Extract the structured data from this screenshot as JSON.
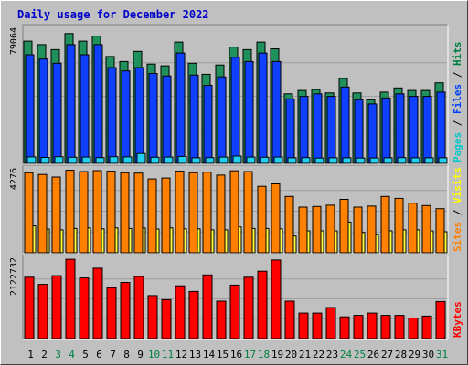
{
  "chart_data": {
    "type": "bar",
    "title": "Daily usage for December 2022",
    "days": [
      "1",
      "2",
      "3",
      "4",
      "5",
      "6",
      "7",
      "8",
      "9",
      "10",
      "11",
      "12",
      "13",
      "14",
      "15",
      "16",
      "17",
      "18",
      "19",
      "20",
      "21",
      "22",
      "23",
      "24",
      "25",
      "26",
      "27",
      "28",
      "29",
      "30",
      "31"
    ],
    "weekend_days": [
      "3",
      "4",
      "10",
      "11",
      "17",
      "18",
      "24",
      "25",
      "31"
    ],
    "panels": [
      {
        "id": "pages-files-hits",
        "ymax": 79064,
        "ymax_label": "79064",
        "legend": [
          {
            "text": "Pages",
            "color": "#00c8c8"
          },
          {
            "text": " / ",
            "color": "#000000"
          },
          {
            "text": "Files",
            "color": "#0040ff"
          },
          {
            "text": " / ",
            "color": "#000000"
          },
          {
            "text": "Hits",
            "color": "#008040"
          }
        ],
        "series": [
          {
            "name": "Hits",
            "color": "#20905c",
            "values": [
              72000,
              70000,
              67000,
              76500,
              72000,
              75000,
              63000,
              60000,
              66000,
              58500,
              57500,
              71500,
              59000,
              52500,
              58000,
              68500,
              67000,
              71500,
              67500,
              41000,
              43000,
              43500,
              41500,
              50000,
              41500,
              37500,
              42000,
              44500,
              43000,
              43000,
              47500
            ]
          },
          {
            "name": "Files",
            "color": "#1040ff",
            "values": [
              64000,
              61500,
              59000,
              70000,
              64000,
              70000,
              56500,
              54500,
              56500,
              53000,
              51500,
              65000,
              52000,
              46000,
              51000,
              62500,
              60000,
              65000,
              60000,
              38000,
              39500,
              41000,
              39500,
              45000,
              37500,
              35000,
              38500,
              41000,
              39500,
              39500,
              42000
            ]
          },
          {
            "name": "Pages",
            "color": "#20d0f0",
            "values": [
              3800,
              3500,
              3900,
              3600,
              3700,
              3400,
              3900,
              3800,
              5800,
              3600,
              3700,
              4100,
              3300,
              3400,
              3700,
              4300,
              3700,
              3600,
              3700,
              3300,
              3400,
              3100,
              3300,
              3300,
              3100,
              3200,
              3300,
              3400,
              3300,
              3300,
              3300
            ]
          }
        ]
      },
      {
        "id": "sites-visits",
        "ymax": 4276,
        "ymax_label": "4276",
        "legend": [
          {
            "text": "Sites",
            "color": "#ff8000"
          },
          {
            "text": " / ",
            "color": "#000000"
          },
          {
            "text": "Visits",
            "color": "#ffff00"
          }
        ],
        "series": [
          {
            "name": "Visits",
            "color": "#ffff40",
            "values": [
              1380,
              1220,
              1180,
              1250,
              1280,
              1230,
              1280,
              1250,
              1280,
              1220,
              1280,
              1230,
              1230,
              1180,
              1180,
              1330,
              1250,
              1250,
              1230,
              860,
              1130,
              1130,
              1130,
              1580,
              1050,
              950,
              1130,
              1180,
              1180,
              1130,
              1080
            ]
          },
          {
            "name": "Sites",
            "color": "#ff8000",
            "values": [
              4120,
              4030,
              3900,
              4250,
              4180,
              4230,
              4200,
              4120,
              4100,
              3800,
              3850,
              4200,
              4120,
              4150,
              4000,
              4220,
              4180,
              3420,
              3550,
              2900,
              2350,
              2380,
              2450,
              2750,
              2350,
              2400,
              2900,
              2800,
              2550,
              2430,
              2270
            ]
          }
        ]
      },
      {
        "id": "kbytes",
        "ymax": 2122732,
        "ymax_label": "2122732",
        "legend": [
          {
            "text": "KBytes",
            "color": "#ff0000"
          }
        ],
        "series": [
          {
            "name": "KBytes",
            "color": "#ff0000",
            "values": [
              1640000,
              1450000,
              1680000,
              2120000,
              1620000,
              1880000,
              1360000,
              1500000,
              1660000,
              1150000,
              1040000,
              1410000,
              1260000,
              1700000,
              1000000,
              1430000,
              1640000,
              1800000,
              2100000,
              1000000,
              680000,
              680000,
              830000,
              580000,
              620000,
              680000,
              620000,
              620000,
              550000,
              600000,
              990000
            ]
          }
        ]
      }
    ]
  }
}
